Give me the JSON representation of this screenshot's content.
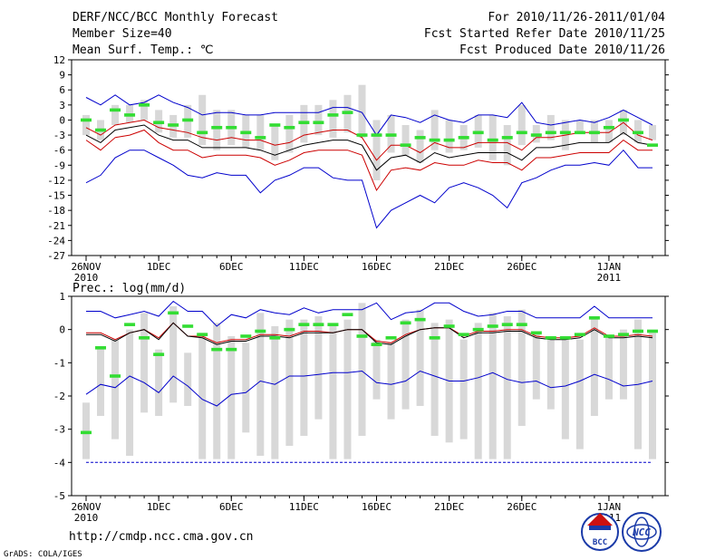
{
  "header": {
    "title": "DERF/NCC/BCC Monthly Forecast",
    "member": "Member Size=40",
    "variable": "Mean Surf. Temp.: ℃",
    "period": "For 2010/11/26-2011/01/04",
    "started": "Fcst Started Refer Date 2010/11/25",
    "produced": "Fcst Produced Date 2010/11/26"
  },
  "footer": {
    "url": "http://cmdp.ncc.cma.gov.cn",
    "grads": "GrADS: COLA/IGES",
    "logo1_text": "BCC",
    "logo2_text": "NCC"
  },
  "colors": {
    "envelope": "#0000cc",
    "spread": "#cc0000",
    "mean": "#000000",
    "obs": "#33dd33",
    "box": "#d8d8d8"
  },
  "chart_data": [
    {
      "type": "line",
      "title": "Mean Surf. Temp.: ℃",
      "days": 40,
      "ylim": [
        -27,
        12
      ],
      "yticks": [
        12,
        9,
        6,
        3,
        0,
        -3,
        -6,
        -9,
        -12,
        -15,
        -18,
        -21,
        -24,
        -27
      ],
      "xtick_labels": [
        {
          "day": 0,
          "label": "26NOV",
          "sub": "2010"
        },
        {
          "day": 5,
          "label": "1DEC"
        },
        {
          "day": 10,
          "label": "6DEC"
        },
        {
          "day": 15,
          "label": "11DEC"
        },
        {
          "day": 20,
          "label": "16DEC"
        },
        {
          "day": 25,
          "label": "21DEC"
        },
        {
          "day": 30,
          "label": "26DEC"
        },
        {
          "day": 36,
          "label": "1JAN",
          "sub": "2011"
        }
      ],
      "series": [
        {
          "name": "max",
          "values": [
            4.5,
            3,
            5,
            3,
            3.5,
            5,
            3.5,
            2.5,
            1,
            1.5,
            1.5,
            1,
            1,
            1.5,
            1.5,
            1.5,
            1.5,
            2.5,
            2.5,
            1.5,
            -3,
            1,
            0.5,
            -0.5,
            1,
            0,
            -0.5,
            1,
            1,
            0.5,
            3.5,
            -0.5,
            -1,
            -0.5,
            0,
            -0.5,
            0.5,
            2,
            0.5,
            -1
          ]
        },
        {
          "name": "p75",
          "values": [
            -1.5,
            -3,
            -1,
            -0.5,
            0,
            -1.5,
            -2,
            -2.5,
            -3.5,
            -4,
            -3.5,
            -4,
            -4,
            -5,
            -4.5,
            -3,
            -2.5,
            -2,
            -2,
            -3.5,
            -8,
            -5,
            -5,
            -6.5,
            -4.5,
            -5.5,
            -5.5,
            -4.5,
            -4.5,
            -4.5,
            -6,
            -3.5,
            -3.5,
            -3,
            -2.5,
            -2.5,
            -2.5,
            -0.5,
            -3,
            -4
          ]
        },
        {
          "name": "mean",
          "values": [
            -3,
            -4.5,
            -2,
            -1.5,
            -1,
            -3,
            -4,
            -4,
            -5.5,
            -5.5,
            -5.5,
            -5.5,
            -6,
            -7,
            -6,
            -5,
            -4.5,
            -4,
            -4,
            -5,
            -10,
            -7.5,
            -7,
            -8.5,
            -6.5,
            -7.5,
            -7,
            -6.5,
            -6.5,
            -6.5,
            -8,
            -5.5,
            -5.5,
            -5,
            -4.5,
            -4.5,
            -4.5,
            -2.5,
            -4.5,
            -5
          ]
        },
        {
          "name": "p25",
          "values": [
            -4,
            -6,
            -3.5,
            -3,
            -2,
            -4.5,
            -6,
            -6,
            -7.5,
            -7,
            -7,
            -7,
            -7.5,
            -9,
            -8,
            -6.5,
            -6,
            -6,
            -6,
            -7,
            -14,
            -10,
            -9.5,
            -10,
            -8.5,
            -9,
            -9,
            -8,
            -8.5,
            -8.5,
            -10,
            -7.5,
            -7.5,
            -7,
            -6.5,
            -6.5,
            -6.5,
            -4,
            -6,
            -6
          ]
        },
        {
          "name": "min",
          "values": [
            -12.5,
            -11,
            -7.5,
            -6,
            -6,
            -7.5,
            -9,
            -11,
            -11.5,
            -10.5,
            -11,
            -11,
            -14.5,
            -12,
            -11,
            -9.5,
            -9.5,
            -11.5,
            -12,
            -12,
            -21.5,
            -18,
            -16.5,
            -15,
            -16.5,
            -13.5,
            -12.5,
            -13.5,
            -15,
            -17.5,
            -12.5,
            -11.5,
            -10,
            -9,
            -9,
            -8.5,
            -9,
            -6,
            -9.5,
            -9.5
          ]
        }
      ],
      "boxes": [
        {
          "low": [
            -3,
            -4,
            -1,
            -0.5,
            0,
            -2.5,
            -3.5,
            -3.5,
            -5,
            -6,
            -5,
            -5.5,
            -6,
            -8,
            -6.5,
            -4.5,
            -3,
            -3.5,
            -2.5,
            -3.5,
            -12,
            -6.5,
            -7,
            -8.5,
            -6,
            -6.5,
            -6,
            -5.5,
            -8,
            -9,
            -5,
            -4.5,
            -4,
            -6,
            -2.5,
            -4.5,
            -4.5,
            -3,
            -4.5,
            -4
          ],
          "high": [
            1,
            0,
            3,
            3,
            4,
            2,
            1,
            3,
            5,
            2,
            2,
            1,
            1,
            -1,
            1,
            3,
            3,
            4,
            5,
            7,
            0,
            1,
            -1,
            -2,
            2,
            0,
            -1,
            1,
            1,
            -1,
            3,
            -1,
            1,
            0,
            0,
            0,
            0,
            2,
            0,
            -1
          ]
        }
      ],
      "observed": [
        0,
        -2,
        2,
        1,
        3,
        -0.5,
        -1,
        0,
        -2.5,
        -1.5,
        -1.5,
        -2.5,
        -3.5,
        -1,
        -1.5,
        -0.5,
        -0.5,
        1,
        1.5,
        -3,
        -3,
        -3,
        -5,
        -3.5,
        -4,
        -4,
        -3.5,
        -2.5,
        -4,
        -3.5,
        -2.5,
        -3,
        -2.5,
        -2.5,
        -2.5,
        -2.5,
        -1.5,
        0,
        -2.5,
        -5
      ]
    },
    {
      "type": "line",
      "title": "Prec.: log(mm/d)",
      "days": 40,
      "ylim": [
        -5,
        1
      ],
      "yticks": [
        1,
        0,
        -1,
        -2,
        -3,
        -4,
        -5
      ],
      "xtick_labels": [
        {
          "day": 0,
          "label": "26NOV",
          "sub": "2010"
        },
        {
          "day": 5,
          "label": "1DEC"
        },
        {
          "day": 10,
          "label": "6DEC"
        },
        {
          "day": 15,
          "label": "11DEC"
        },
        {
          "day": 20,
          "label": "16DEC"
        },
        {
          "day": 25,
          "label": "21DEC"
        },
        {
          "day": 30,
          "label": "26DEC"
        },
        {
          "day": 36,
          "label": "1JAN",
          "sub": "2011"
        }
      ],
      "series": [
        {
          "name": "max",
          "values": [
            0.55,
            0.55,
            0.35,
            0.45,
            0.55,
            0.4,
            0.85,
            0.55,
            0.55,
            0.1,
            0.45,
            0.35,
            0.6,
            0.5,
            0.45,
            0.65,
            0.5,
            0.6,
            0.6,
            0.6,
            0.8,
            0.3,
            0.5,
            0.55,
            0.8,
            0.8,
            0.55,
            0.4,
            0.45,
            0.55,
            0.55,
            0.35,
            0.35,
            0.35,
            0.35,
            0.7,
            0.35,
            0.35,
            0.35,
            0.35
          ]
        },
        {
          "name": "p75",
          "values": [
            -0.1,
            -0.1,
            -0.3,
            -0.1,
            0,
            -0.25,
            0.2,
            -0.2,
            -0.2,
            -0.4,
            -0.3,
            -0.3,
            -0.15,
            -0.15,
            -0.2,
            -0.05,
            -0.05,
            -0.1,
            0,
            0,
            -0.35,
            -0.4,
            -0.15,
            0,
            0.05,
            0.05,
            -0.2,
            -0.05,
            -0.05,
            0,
            0,
            -0.2,
            -0.25,
            -0.25,
            -0.2,
            0.05,
            -0.2,
            -0.2,
            -0.15,
            -0.2
          ]
        },
        {
          "name": "mean",
          "values": [
            -0.15,
            -0.15,
            -0.35,
            -0.1,
            0,
            -0.3,
            0.2,
            -0.2,
            -0.25,
            -0.45,
            -0.35,
            -0.35,
            -0.2,
            -0.2,
            -0.25,
            -0.1,
            -0.1,
            -0.1,
            0,
            0,
            -0.4,
            -0.45,
            -0.2,
            0,
            0.05,
            0.05,
            -0.25,
            -0.1,
            -0.1,
            -0.05,
            -0.05,
            -0.25,
            -0.3,
            -0.3,
            -0.25,
            0,
            -0.25,
            -0.25,
            -0.2,
            -0.25
          ]
        },
        {
          "name": "min",
          "values": [
            -1.95,
            -1.65,
            -1.75,
            -1.4,
            -1.6,
            -1.9,
            -1.4,
            -1.7,
            -2.1,
            -2.3,
            -1.95,
            -1.9,
            -1.55,
            -1.65,
            -1.4,
            -1.4,
            -1.35,
            -1.3,
            -1.3,
            -1.25,
            -1.6,
            -1.65,
            -1.55,
            -1.25,
            -1.4,
            -1.55,
            -1.55,
            -1.45,
            -1.3,
            -1.5,
            -1.6,
            -1.55,
            -1.75,
            -1.7,
            -1.55,
            -1.35,
            -1.5,
            -1.7,
            -1.65,
            -1.55
          ]
        },
        {
          "name": "floor",
          "values": [
            -4,
            -4,
            -4,
            -4,
            -4,
            -4,
            -4,
            -4,
            -4,
            -4,
            -4,
            -4,
            -4,
            -4,
            -4,
            -4,
            -4,
            -4,
            -4,
            -4,
            -4,
            -4,
            -4,
            -4,
            -4,
            -4,
            -4,
            -4,
            -4,
            -4,
            -4,
            -4,
            -4,
            -4,
            -4,
            -4,
            -4,
            -4,
            -4,
            -4
          ]
        }
      ],
      "boxes": [
        {
          "low": [
            -3.9,
            -2.6,
            -3.3,
            -3.8,
            -2.5,
            -2.6,
            -2.2,
            -2.3,
            -3.9,
            -3.9,
            -3.9,
            -3.1,
            -3.8,
            -3.9,
            -3.5,
            -3.2,
            -2.7,
            -3.9,
            -3.9,
            -3.2,
            -2.1,
            -2.7,
            -2.4,
            -2.3,
            -3.2,
            -3.4,
            -3.3,
            -3.9,
            -3.9,
            -3.9,
            -2.9,
            -2.1,
            -2.4,
            -3.3,
            -3.6,
            -2.6,
            -2.1,
            -2.1,
            -3.6,
            -3.9
          ],
          "high": [
            -2.2,
            -0.5,
            -0.3,
            0,
            0.5,
            -0.6,
            0.7,
            -0.7,
            -0.1,
            0.2,
            -0.2,
            -0.4,
            0.5,
            0.1,
            0.3,
            0.3,
            0.4,
            0.1,
            0.3,
            0.8,
            -0.3,
            -0.4,
            0.3,
            0.6,
            0.2,
            0.3,
            -0.3,
            0.2,
            0.5,
            0.4,
            0.6,
            -0.1,
            -0.3,
            -0.2,
            -0.3,
            0.4,
            -0.2,
            0,
            0.3,
            -0.1
          ]
        }
      ],
      "observed": [
        -3.1,
        -0.55,
        -1.4,
        0.15,
        -0.25,
        -0.75,
        0.5,
        0.1,
        -0.15,
        -0.6,
        -0.6,
        -0.2,
        -0.05,
        -0.25,
        0,
        0.15,
        0.15,
        0.15,
        0.45,
        -0.2,
        -0.45,
        -0.25,
        0.2,
        0.3,
        -0.25,
        0.1,
        -0.15,
        0,
        0.1,
        0.15,
        0.15,
        -0.1,
        -0.25,
        -0.25,
        -0.15,
        0.35,
        -0.2,
        -0.15,
        -0.05,
        -0.05
      ]
    }
  ]
}
